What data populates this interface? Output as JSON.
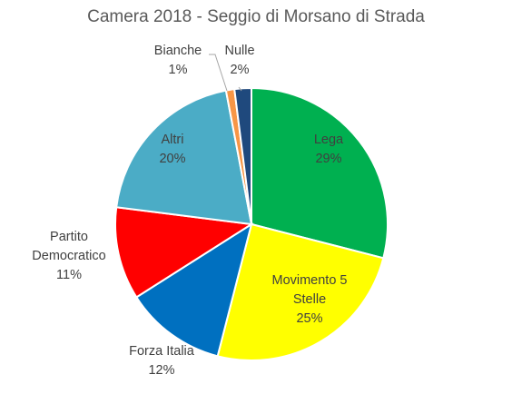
{
  "chart_data": {
    "type": "pie",
    "title": "Camera 2018 - Seggio di Morsano di Strada",
    "slices": [
      {
        "label": "Lega",
        "value": 29,
        "value_label": "29%",
        "color": "#00B050"
      },
      {
        "label": "Movimento 5 Stelle",
        "value": 25,
        "value_label": "25%",
        "color": "#FFFF00"
      },
      {
        "label": "Forza Italia",
        "value": 12,
        "value_label": "12%",
        "color": "#0070C0"
      },
      {
        "label": "Partito Democratico",
        "value": 11,
        "value_label": "11%",
        "color": "#FF0000"
      },
      {
        "label": "Altri",
        "value": 20,
        "value_label": "20%",
        "color": "#4BACC6"
      },
      {
        "label": "Bianche",
        "value": 1,
        "value_label": "1%",
        "color": "#F79646"
      },
      {
        "label": "Nulle",
        "value": 2,
        "value_label": "2%",
        "color": "#1F497D"
      }
    ],
    "legend": "none"
  }
}
